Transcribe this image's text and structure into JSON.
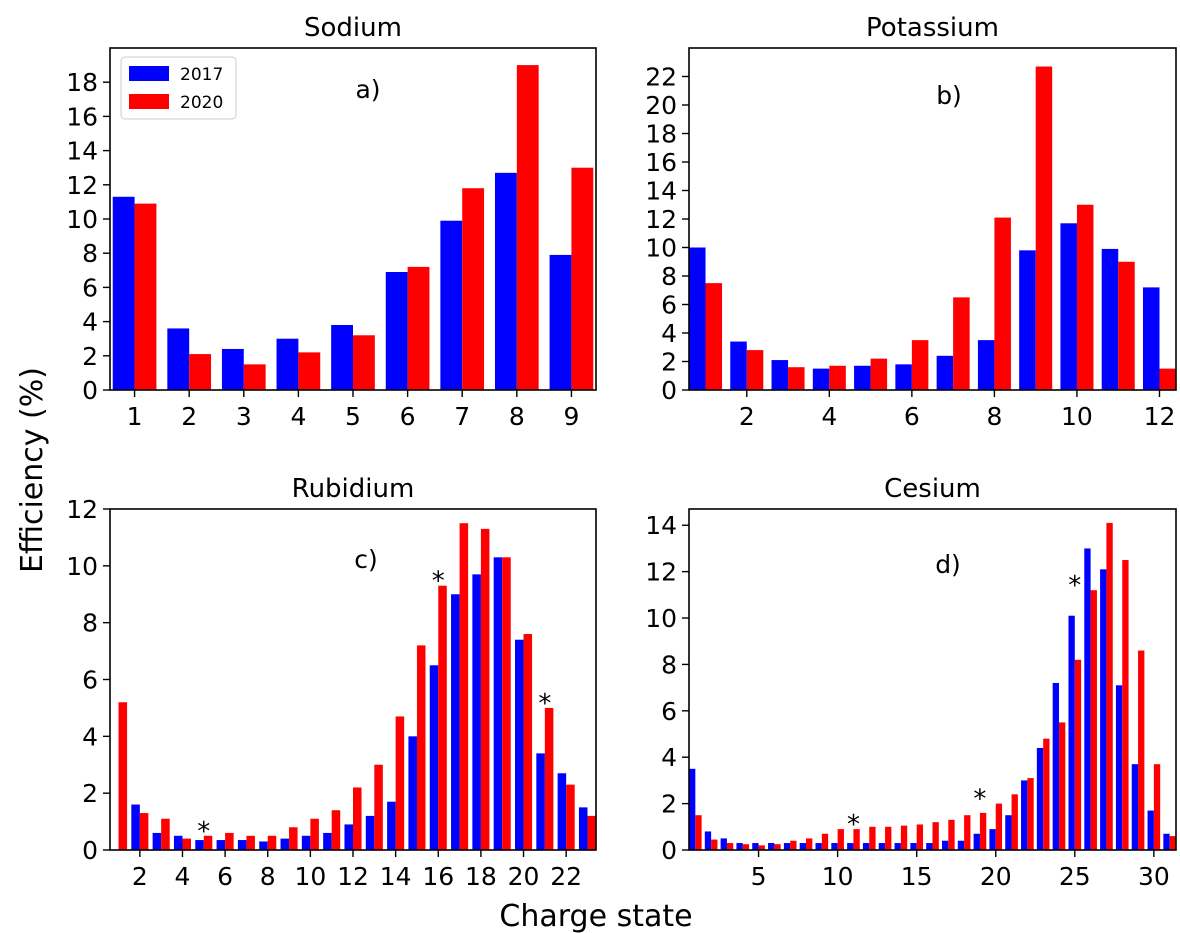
{
  "figure": {
    "ylabel": "Efficiency (%)",
    "xlabel": "Charge state",
    "legend": [
      "2017",
      "2020"
    ],
    "colors": {
      "2017": "#0000ff",
      "2020": "#ff0000"
    }
  },
  "chart_data": [
    {
      "type": "bar",
      "title": "Sodium",
      "annotation": "a)",
      "legend_location": "top-left",
      "x": [
        1,
        2,
        3,
        4,
        5,
        6,
        7,
        8,
        9
      ],
      "xlim": [
        0.55,
        9.45
      ],
      "ylim": [
        0,
        20
      ],
      "xticks": [
        1,
        2,
        3,
        4,
        5,
        6,
        7,
        8,
        9
      ],
      "yticks": [
        0,
        2,
        4,
        6,
        8,
        10,
        12,
        14,
        16,
        18
      ],
      "series": [
        {
          "name": "2017",
          "color": "#0000ff",
          "values": [
            11.3,
            3.6,
            2.4,
            3.0,
            3.8,
            6.9,
            9.9,
            12.7,
            7.9
          ]
        },
        {
          "name": "2020",
          "color": "#ff0000",
          "values": [
            10.9,
            2.1,
            1.5,
            2.2,
            3.2,
            7.2,
            11.8,
            19.0,
            13.0
          ]
        }
      ],
      "stars": []
    },
    {
      "type": "bar",
      "title": "Potassium",
      "annotation": "b)",
      "x": [
        1,
        2,
        3,
        4,
        5,
        6,
        7,
        8,
        9,
        10,
        11,
        12
      ],
      "xlim": [
        0.6,
        12.4
      ],
      "ylim": [
        0,
        24
      ],
      "xticks": [
        2,
        4,
        6,
        8,
        10,
        12
      ],
      "yticks": [
        0,
        2,
        4,
        6,
        8,
        10,
        12,
        14,
        16,
        18,
        20,
        22
      ],
      "series": [
        {
          "name": "2017",
          "color": "#0000ff",
          "values": [
            10.0,
            3.4,
            2.1,
            1.5,
            1.7,
            1.8,
            2.4,
            3.5,
            9.8,
            11.7,
            9.9,
            7.2
          ]
        },
        {
          "name": "2020",
          "color": "#ff0000",
          "values": [
            7.5,
            2.8,
            1.6,
            1.7,
            2.2,
            3.5,
            6.5,
            12.1,
            22.7,
            13.0,
            9.0,
            1.5
          ]
        }
      ],
      "stars": []
    },
    {
      "type": "bar",
      "title": "Rubidium",
      "annotation": "c)",
      "x": [
        1,
        2,
        3,
        4,
        5,
        6,
        7,
        8,
        9,
        10,
        11,
        12,
        13,
        14,
        15,
        16,
        17,
        18,
        19,
        20,
        21,
        22,
        23
      ],
      "xlim": [
        0.6,
        23.4
      ],
      "ylim": [
        0,
        12
      ],
      "xticks": [
        2,
        4,
        6,
        8,
        10,
        12,
        14,
        16,
        18,
        20,
        22
      ],
      "yticks": [
        0,
        2,
        4,
        6,
        8,
        10,
        12
      ],
      "series": [
        {
          "name": "2017",
          "color": "#0000ff",
          "values": [
            0,
            1.6,
            0.6,
            0.5,
            0.35,
            0.35,
            0.35,
            0.3,
            0.4,
            0.5,
            0.6,
            0.9,
            1.2,
            1.7,
            4.0,
            6.5,
            9.0,
            9.7,
            10.3,
            7.4,
            3.4,
            2.7,
            1.5
          ]
        },
        {
          "name": "2020",
          "color": "#ff0000",
          "values": [
            5.2,
            1.3,
            1.1,
            0.4,
            0.5,
            0.6,
            0.5,
            0.5,
            0.8,
            1.1,
            1.4,
            2.2,
            3.0,
            4.7,
            7.2,
            9.3,
            11.5,
            11.3,
            10.3,
            7.6,
            5.0,
            2.3,
            1.2
          ]
        }
      ],
      "stars": [
        {
          "text": "*",
          "x": 5,
          "y": 0.5
        },
        {
          "text": "*",
          "x": 16,
          "y": 9.3
        },
        {
          "text": "*",
          "x": 21,
          "y": 5.0
        }
      ]
    },
    {
      "type": "bar",
      "title": "Cesium",
      "annotation": "d)",
      "x": [
        1,
        2,
        3,
        4,
        5,
        6,
        7,
        8,
        9,
        10,
        11,
        12,
        13,
        14,
        15,
        16,
        17,
        18,
        19,
        20,
        21,
        22,
        23,
        24,
        25,
        26,
        27,
        28,
        29,
        30,
        31
      ],
      "xlim": [
        0.6,
        31.4
      ],
      "ylim": [
        0,
        14.7
      ],
      "xticks": [
        5,
        10,
        15,
        20,
        25,
        30
      ],
      "yticks": [
        0,
        2,
        4,
        6,
        8,
        10,
        12,
        14
      ],
      "series": [
        {
          "name": "2017",
          "color": "#0000ff",
          "values": [
            3.5,
            0.8,
            0.5,
            0.3,
            0.3,
            0.3,
            0.3,
            0.3,
            0.3,
            0.3,
            0.3,
            0.3,
            0.3,
            0.3,
            0.3,
            0.3,
            0.4,
            0.4,
            0.7,
            0.9,
            1.5,
            3.0,
            4.4,
            7.2,
            10.1,
            13.0,
            12.1,
            7.1,
            3.7,
            1.7,
            0.7
          ]
        },
        {
          "name": "2020",
          "color": "#ff0000",
          "values": [
            1.5,
            0.45,
            0.3,
            0.25,
            0.2,
            0.25,
            0.4,
            0.5,
            0.7,
            0.9,
            0.9,
            1.0,
            1.0,
            1.05,
            1.1,
            1.2,
            1.3,
            1.5,
            1.6,
            2.0,
            2.4,
            3.1,
            4.8,
            5.5,
            8.2,
            11.2,
            14.1,
            12.5,
            8.6,
            3.7,
            0.6
          ]
        }
      ],
      "stars": [
        {
          "text": "*",
          "x": 11,
          "y": 0.9
        },
        {
          "text": "*",
          "x": 19,
          "y": 2.0
        },
        {
          "text": "*",
          "x": 25,
          "y": 11.2
        }
      ]
    }
  ]
}
